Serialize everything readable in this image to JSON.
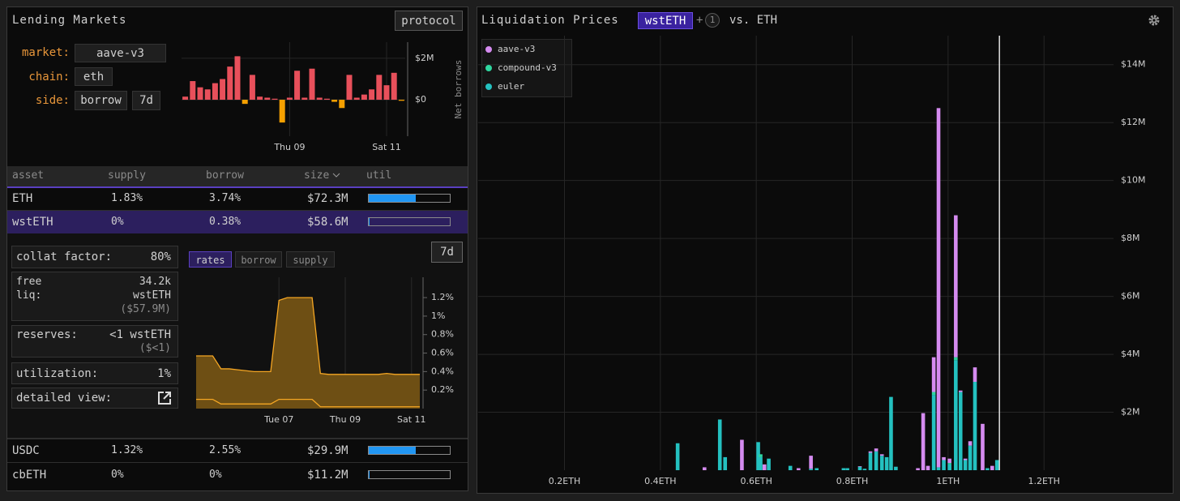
{
  "ui": {
    "left_title": "Lending Markets",
    "protocol_button": "protocol",
    "filters": [
      {
        "label": "market:",
        "value": "aave-v3"
      },
      {
        "label": "chain:",
        "value": "eth"
      },
      {
        "label": "side:",
        "value": "borrow",
        "period": "7d"
      }
    ],
    "table": {
      "columns": [
        "asset",
        "supply",
        "borrow",
        "size",
        "util"
      ],
      "rows": [
        {
          "asset": "ETH",
          "supply": "1.83%",
          "borrow": "3.74%",
          "size": "$72.3M",
          "util": 58
        },
        {
          "asset": "wstETH",
          "supply": "0%",
          "borrow": "0.38%",
          "size": "$58.6M",
          "util": 1
        },
        {
          "asset": "USDC",
          "supply": "1.32%",
          "borrow": "2.55%",
          "size": "$29.9M",
          "util": 58
        },
        {
          "asset": "cbETH",
          "supply": "0%",
          "borrow": "0%",
          "size": "$11.2M",
          "util": 0
        }
      ]
    },
    "details": {
      "collat_factor": {
        "label": "collat factor:",
        "value": "80%"
      },
      "free_liq": {
        "label1": "free",
        "label2": "liq:",
        "value": "34.2k",
        "unit": "wstETH",
        "usd": "($57.9M)"
      },
      "reserves": {
        "label": "reserves:",
        "value": "<1 wstETH",
        "usd": "($<1)"
      },
      "utilization": {
        "label": "utilization:",
        "value": "1%"
      },
      "detailed_view": "detailed view:"
    },
    "rates_tabs": [
      "rates",
      "borrow",
      "supply"
    ],
    "rates_period": "7d",
    "right_title": "Liquidation Prices",
    "asset_chip": "wstETH",
    "plus": "+",
    "extra_count": "1",
    "versus": "vs. ETH"
  },
  "chart_data": [
    {
      "type": "bar",
      "y_label": "Net borrows",
      "categories": [
        null,
        null,
        null,
        null,
        null,
        null,
        null,
        null,
        null,
        null,
        null,
        null,
        null,
        null,
        "Thu 09",
        null,
        null,
        null,
        null,
        null,
        null,
        null,
        null,
        null,
        null,
        null,
        null,
        "Sat 11",
        null,
        null
      ],
      "values": [
        150000,
        900000,
        600000,
        500000,
        800000,
        1000000,
        1600000,
        2100000,
        -200000,
        1200000,
        150000,
        100000,
        50000,
        -1100000,
        100000,
        1400000,
        100000,
        1500000,
        100000,
        50000,
        -100000,
        -400000,
        1200000,
        100000,
        250000,
        500000,
        1200000,
        700000,
        1300000,
        -50000
      ],
      "ylim": [
        -1760000,
        2780000
      ],
      "yticks": [
        {
          "value": 0,
          "label": "$0"
        },
        {
          "value": 2000000,
          "label": "$2M"
        }
      ],
      "colors": {
        "positive": "#e8505b",
        "negative": "#f5a000"
      },
      "grid": true
    },
    {
      "type": "area",
      "categories": [
        null,
        null,
        null,
        null,
        null,
        null,
        null,
        null,
        null,
        null,
        "Tue 07",
        null,
        null,
        null,
        null,
        null,
        null,
        null,
        "Thu 09",
        null,
        null,
        null,
        null,
        null,
        null,
        null,
        "Sat 11",
        null
      ],
      "series": [
        {
          "color": "#f5a623",
          "values": [
            0.57,
            0.57,
            0.57,
            0.43,
            0.43,
            0.42,
            0.41,
            0.4,
            0.4,
            0.4,
            1.17,
            1.2,
            1.2,
            1.2,
            1.2,
            0.38,
            0.37,
            0.37,
            0.37,
            0.37,
            0.37,
            0.37,
            0.37,
            0.38,
            0.37,
            0.37,
            0.37,
            0.37
          ]
        },
        {
          "color": "#f5a623",
          "values": [
            0.1,
            0.1,
            0.1,
            0.05,
            0.05,
            0.05,
            0.05,
            0.05,
            0.05,
            0.05,
            0.1,
            0.1,
            0.1,
            0.1,
            0.1,
            0.02,
            0.02,
            0.02,
            0.02,
            0.02,
            0.02,
            0.02,
            0.02,
            0.02,
            0.02,
            0.02,
            0.02,
            0.02
          ]
        }
      ],
      "fill": "#6e4f14",
      "ylim": [
        0,
        1.42
      ],
      "yticks": [
        {
          "value": 0.2,
          "label": "0.2%"
        },
        {
          "value": 0.4,
          "label": "0.4%"
        },
        {
          "value": 0.6,
          "label": "0.6%"
        },
        {
          "value": 0.8,
          "label": "0.8%"
        },
        {
          "value": 1,
          "label": "1%"
        },
        {
          "value": 1.2,
          "label": "1.2%"
        }
      ],
      "grid": true
    },
    {
      "type": "stacked_bar",
      "x": [
        0.436,
        0.492,
        0.524,
        0.535,
        0.57,
        0.604,
        0.609,
        0.617,
        0.626,
        0.671,
        0.688,
        0.714,
        0.726,
        0.782,
        0.79,
        0.816,
        0.826,
        0.838,
        0.85,
        0.862,
        0.872,
        0.881,
        0.891,
        0.937,
        0.948,
        0.958,
        0.97,
        0.98,
        0.991,
        1.003,
        1.016,
        1.026,
        1.036,
        1.046,
        1.056,
        1.072,
        1.082,
        1.092,
        1.102
      ],
      "series": [
        {
          "name": "aave-v3",
          "color": "#d58bf0",
          "values": [
            null,
            100000,
            null,
            null,
            1050000,
            null,
            null,
            200000,
            null,
            null,
            70000,
            450000,
            null,
            null,
            null,
            20000,
            null,
            50000,
            100000,
            50000,
            null,
            null,
            null,
            70000,
            1970000,
            150000,
            1200000,
            12400000,
            100000,
            150000,
            4900000,
            50000,
            50000,
            150000,
            500000,
            1600000,
            null,
            150000,
            null
          ]
        },
        {
          "name": "compound-v3",
          "color": "#2fd69f",
          "values": [
            null,
            null,
            null,
            null,
            null,
            null,
            100000,
            null,
            null,
            null,
            null,
            null,
            null,
            null,
            null,
            null,
            null,
            null,
            null,
            null,
            null,
            null,
            null,
            null,
            null,
            null,
            100000,
            null,
            null,
            50000,
            100000,
            null,
            null,
            null,
            null,
            null,
            null,
            null,
            null
          ]
        },
        {
          "name": "euler",
          "color": "#24c1c0",
          "values": [
            930000,
            null,
            1750000,
            450000,
            null,
            970000,
            450000,
            null,
            400000,
            150000,
            null,
            50000,
            70000,
            70000,
            70000,
            120000,
            50000,
            600000,
            650000,
            500000,
            450000,
            2530000,
            120000,
            null,
            null,
            null,
            2600000,
            100000,
            350000,
            200000,
            3800000,
            2700000,
            350000,
            850000,
            3050000,
            null,
            70000,
            null,
            350000
          ]
        }
      ],
      "xlim": [
        0.02,
        1.345
      ],
      "ylim": [
        0,
        15000000
      ],
      "xticks": [
        {
          "value": 0.2,
          "label": "0.2ETH"
        },
        {
          "value": 0.4,
          "label": "0.4ETH"
        },
        {
          "value": 0.6,
          "label": "0.6ETH"
        },
        {
          "value": 0.8,
          "label": "0.8ETH"
        },
        {
          "value": 1,
          "label": "1ETH"
        },
        {
          "value": 1.2,
          "label": "1.2ETH"
        }
      ],
      "yticks": [
        {
          "value": 2000000,
          "label": "$2M"
        },
        {
          "value": 4000000,
          "label": "$4M"
        },
        {
          "value": 6000000,
          "label": "$6M"
        },
        {
          "value": 8000000,
          "label": "$8M"
        },
        {
          "value": 10000000,
          "label": "$10M"
        },
        {
          "value": 12000000,
          "label": "$12M"
        },
        {
          "value": 14000000,
          "label": "$14M"
        }
      ],
      "grid": true,
      "legend": "top-left",
      "price_line": 1.107
    }
  ]
}
